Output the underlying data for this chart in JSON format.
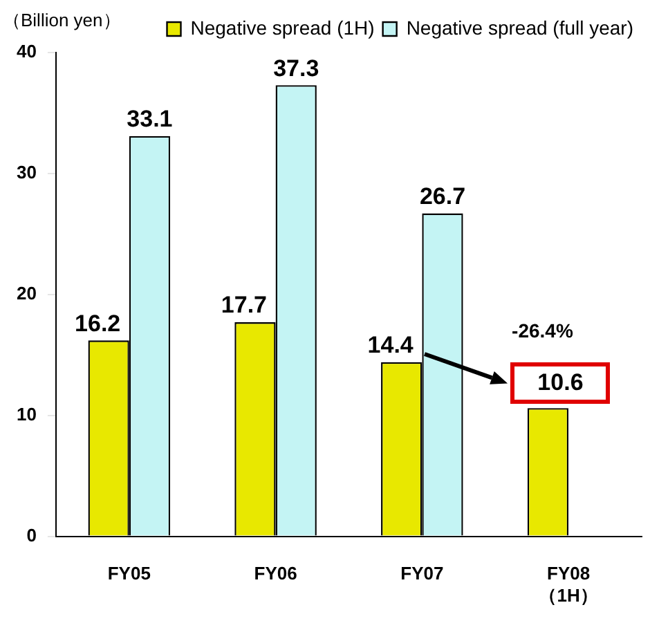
{
  "chart_data": {
    "type": "bar",
    "ylabel": "（Billion yen）",
    "categories": [
      "FY05",
      "FY06",
      "FY07",
      "FY08\n（1H）"
    ],
    "series": [
      {
        "name": "Negative spread (1H)",
        "color": "#e8e800",
        "values": [
          16.2,
          17.7,
          14.4,
          10.6
        ]
      },
      {
        "name": "Negative spread (full year)",
        "color": "#c4f4f4",
        "values": [
          33.1,
          37.3,
          26.7,
          null
        ]
      }
    ],
    "ylim": [
      0,
      40
    ],
    "yticks": [
      0,
      10,
      20,
      30,
      40
    ],
    "grid": false,
    "legend": "top",
    "data_labels": true,
    "annotations": [
      "-26.4%"
    ]
  }
}
